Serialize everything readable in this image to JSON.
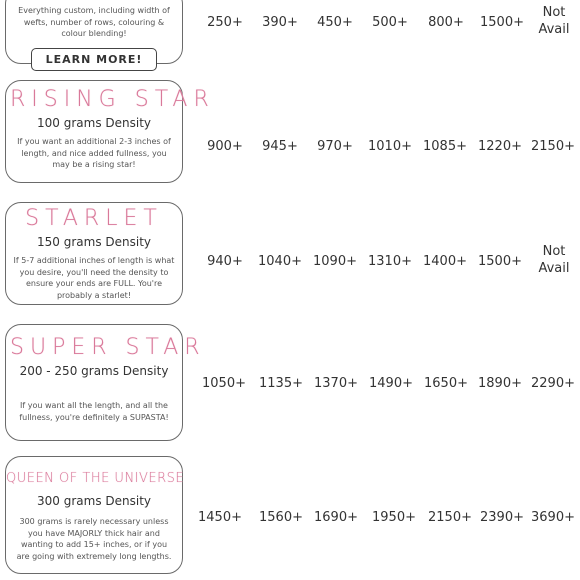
{
  "tiers": [
    {
      "title": "",
      "density": "",
      "description": "Everything custom, including width of wefts, number of rows, colouring & colour blending!",
      "button": "LEARN MORE!",
      "prices": [
        "250+",
        "390+",
        "450+",
        "500+",
        "800+",
        "1500+",
        "Not Avail"
      ]
    },
    {
      "title": "RISING STAR",
      "density": "100 grams Density",
      "description": "If you want an additional 2-3 inches of length, and nice added fullness, you may be a rising star!",
      "prices": [
        "900+",
        "945+",
        "970+",
        "1010+",
        "1085+",
        "1220+",
        "2150+"
      ]
    },
    {
      "title": "STARLET",
      "density": "150 grams Density",
      "description": "If 5-7 additional inches of length is what you desire, you'll need the density to ensure your ends are FULL. You're probably a starlet!",
      "prices": [
        "940+",
        "1040+",
        "1090+",
        "1310+",
        "1400+",
        "1500+",
        "Not Avail"
      ]
    },
    {
      "title": "SUPER STAR",
      "density": "200 - 250 grams Density",
      "description": "If you want all the length, and all the fullness, you're definitely a SUPASTA!",
      "prices": [
        "1050+",
        "1135+",
        "1370+",
        "1490+",
        "1650+",
        "1890+",
        "2290+"
      ]
    },
    {
      "title": "QUEEN OF THE UNIVERSE",
      "density": "300 grams Density",
      "description": "300 grams is rarely necessary unless you have MAJORLY thick hair and wanting to add 15+ inches, or if you are going with extremely long lengths.",
      "prices": [
        "1450+",
        "1560+",
        "1690+",
        "1950+",
        "2150+",
        "2390+",
        "3690+"
      ]
    }
  ],
  "colors": {
    "title_pink": "#d9799a",
    "border": "#6a6a6a"
  }
}
